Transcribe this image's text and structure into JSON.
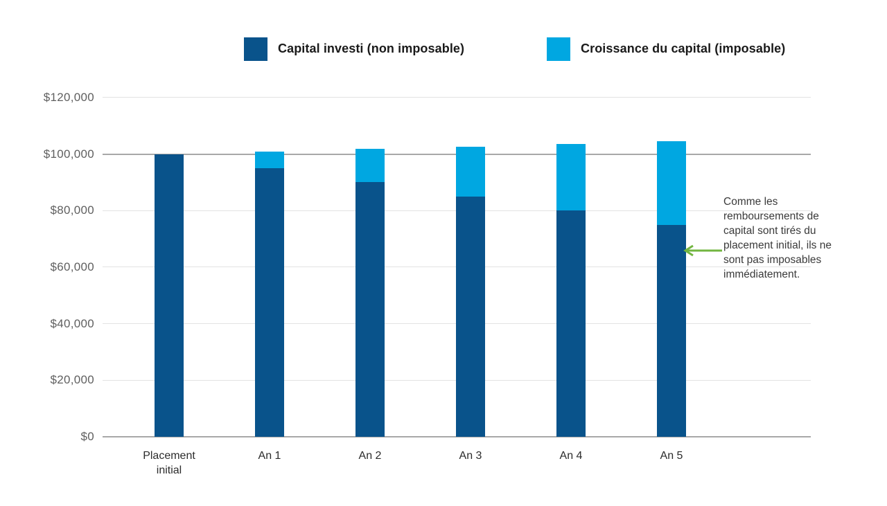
{
  "legend": {
    "items": [
      {
        "label": "Capital investi (non imposable)",
        "color": "#09538b"
      },
      {
        "label": "Croissance du capital (imposable)",
        "color": "#00a7e1"
      }
    ]
  },
  "annotation": {
    "text": "Comme les remboursements de capital sont tirés du placement initial, ils ne sont pas imposables immédiatement.",
    "arrow_color": "#72b540"
  },
  "chart_data": {
    "type": "bar",
    "stacked": true,
    "title": "",
    "xlabel": "",
    "ylabel": "",
    "categories": [
      "Placement initial",
      "An 1",
      "An 2",
      "An 3",
      "An 4",
      "An 5"
    ],
    "series": [
      {
        "name": "Capital investi (non imposable)",
        "color": "#09538b",
        "values": [
          100000,
          95000,
          90000,
          85000,
          80000,
          75000
        ]
      },
      {
        "name": "Croissance du capital (imposable)",
        "color": "#00a7e1",
        "values": [
          0,
          5900,
          11800,
          17700,
          23600,
          29500
        ]
      }
    ],
    "totals": [
      100000,
      100900,
      101800,
      102700,
      103600,
      104500
    ],
    "ylim": [
      0,
      120000
    ],
    "ytick_step": 20000,
    "ytick_labels": [
      "$0",
      "$20,000",
      "$40,000",
      "$60,000",
      "$80,000",
      "$100,000",
      "$120,000"
    ],
    "grid": true,
    "emphasized_gridlines": [
      0,
      100000
    ],
    "gridline_color": "#e2e2e2",
    "emphasized_gridline_color": "#a8a8a8",
    "legend_position": "top"
  }
}
